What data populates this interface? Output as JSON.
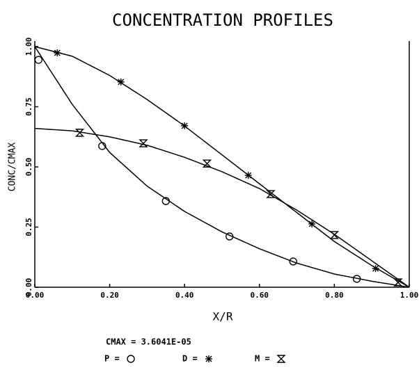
{
  "chart_data": {
    "type": "line",
    "title": "CONCENTRATION PROFILES",
    "xlabel": "X/R",
    "ylabel": "CONC/CMAX",
    "note": "CMAX =  3.6041E-05",
    "xlim": [
      0,
      1
    ],
    "ylim": [
      0,
      1
    ],
    "xticks": [
      {
        "value": 0,
        "label": "0.00"
      },
      {
        "value": 0.2,
        "label": "0.20"
      },
      {
        "value": 0.4,
        "label": "0.40"
      },
      {
        "value": 0.6,
        "label": "0.60"
      },
      {
        "value": 0.8,
        "label": "0.80"
      },
      {
        "value": 1,
        "label": "1.00"
      }
    ],
    "yticks": [
      {
        "value": 0,
        "label": "0.00"
      },
      {
        "value": 0.25,
        "label": "0.25"
      },
      {
        "value": 0.5,
        "label": "0.50"
      },
      {
        "value": 0.75,
        "label": "0.75"
      },
      {
        "value": 1,
        "label": "1.00"
      }
    ],
    "curve_x": [
      0,
      0.1,
      0.2,
      0.3,
      0.4,
      0.5,
      0.6,
      0.7,
      0.8,
      0.9,
      1.0
    ],
    "series": [
      {
        "name": "P =",
        "marker": "circle",
        "color": "#000",
        "x": [
          0.01,
          0.18,
          0.35,
          0.52,
          0.69,
          0.86
        ],
        "values": [
          0.945,
          0.587,
          0.358,
          0.211,
          0.107,
          0.035
        ],
        "curve": [
          1.0,
          0.76,
          0.56,
          0.42,
          0.315,
          0.23,
          0.16,
          0.1,
          0.055,
          0.025,
          0
        ]
      },
      {
        "name": "D =",
        "marker": "asterisk",
        "color": "#000",
        "x": [
          0.06,
          0.23,
          0.4,
          0.57,
          0.74,
          0.91
        ],
        "values": [
          0.974,
          0.853,
          0.671,
          0.465,
          0.263,
          0.078
        ],
        "curve": [
          1.0,
          0.96,
          0.88,
          0.78,
          0.67,
          0.55,
          0.43,
          0.31,
          0.19,
          0.09,
          0
        ]
      },
      {
        "name": "M =",
        "marker": "hourglass",
        "color": "#000",
        "x": [
          0.12,
          0.29,
          0.46,
          0.63,
          0.8,
          0.97
        ],
        "values": [
          0.642,
          0.598,
          0.514,
          0.387,
          0.217,
          0.02
        ],
        "curve": [
          0.66,
          0.65,
          0.625,
          0.59,
          0.54,
          0.48,
          0.41,
          0.32,
          0.22,
          0.11,
          0
        ]
      }
    ]
  }
}
